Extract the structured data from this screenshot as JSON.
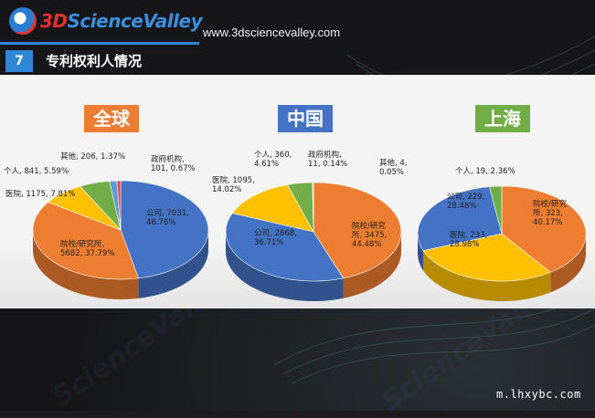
{
  "header": {
    "logo_prefix": "3D",
    "logo_name": "ScienceValley",
    "site_url": "www.3dsciencevalley.com",
    "slide_number": "7",
    "section_title": "专利权利人情况"
  },
  "watermark": "m.lhxybc.com",
  "colors": {
    "orange": "#ed7d31",
    "blue": "#4472c4",
    "yellow": "#ffc000",
    "green": "#70ad47",
    "red": "#e84545",
    "accent_blue": "#2f86d6"
  },
  "chart_data": [
    {
      "type": "pie",
      "title": "全球",
      "slices": [
        {
          "category": "公司",
          "value": 7031,
          "percent": "46.76%",
          "color": "#4472c4",
          "label_lines": [
            "公司, 7031,",
            "46.76%"
          ]
        },
        {
          "category": "院校/研究所",
          "value": 5682,
          "percent": "37.79%",
          "color": "#ed7d31",
          "label_lines": [
            "院校/研究所,",
            "5682, 37.79%"
          ]
        },
        {
          "category": "医院",
          "value": 1175,
          "percent": "7.81%",
          "color": "#ffc000",
          "label_lines": [
            "医院, 1175, 7.81%"
          ]
        },
        {
          "category": "个人",
          "value": 841,
          "percent": "5.59%",
          "color": "#70ad47",
          "label_lines": [
            "个人, 841, 5.59%"
          ]
        },
        {
          "category": "其他",
          "value": 206,
          "percent": "1.37%",
          "color": "#5b9bd5",
          "label_lines": [
            "其他, 206, 1.37%"
          ]
        },
        {
          "category": "政府机构",
          "value": 101,
          "percent": "0.67%",
          "color": "#e84545",
          "label_lines": [
            "政府机构,",
            "101, 0.67%"
          ]
        }
      ]
    },
    {
      "type": "pie",
      "title": "中国",
      "slices": [
        {
          "category": "院校/研究所",
          "value": 3475,
          "percent": "44.48%",
          "color": "#ed7d31",
          "label_lines": [
            "院校/研究",
            "所, 3475,",
            "44.48%"
          ]
        },
        {
          "category": "公司",
          "value": 2868,
          "percent": "36.71%",
          "color": "#4472c4",
          "label_lines": [
            "公司, 2868,",
            "36.71%"
          ]
        },
        {
          "category": "医院",
          "value": 1095,
          "percent": "14.02%",
          "color": "#ffc000",
          "label_lines": [
            "医院, 1095,",
            "14.02%"
          ]
        },
        {
          "category": "个人",
          "value": 360,
          "percent": "4.61%",
          "color": "#70ad47",
          "label_lines": [
            "个人, 360,",
            "4.61%"
          ]
        },
        {
          "category": "政府机构",
          "value": 11,
          "percent": "0.14%",
          "color": "#e84545",
          "label_lines": [
            "政府机构,",
            "11, 0.14%"
          ]
        },
        {
          "category": "其他",
          "value": 4,
          "percent": "0.05%",
          "color": "#5b9bd5",
          "label_lines": [
            "其他, 4,",
            "0.05%"
          ]
        }
      ]
    },
    {
      "type": "pie",
      "title": "上海",
      "slices": [
        {
          "category": "院校/研究所",
          "value": 323,
          "percent": "40.17%",
          "color": "#ed7d31",
          "label_lines": [
            "院校/研究",
            "所, 323,",
            "40.17%"
          ]
        },
        {
          "category": "医院",
          "value": 233,
          "percent": "28.98%",
          "color": "#ffc000",
          "label_lines": [
            "医院, 233,",
            "28.98%"
          ]
        },
        {
          "category": "公司",
          "value": 229,
          "percent": "28.48%",
          "color": "#4472c4",
          "label_lines": [
            "公司, 229,",
            "28.48%"
          ]
        },
        {
          "category": "个人",
          "value": 19,
          "percent": "2.36%",
          "color": "#70ad47",
          "label_lines": [
            "个人, 19, 2.36%"
          ]
        }
      ]
    }
  ]
}
